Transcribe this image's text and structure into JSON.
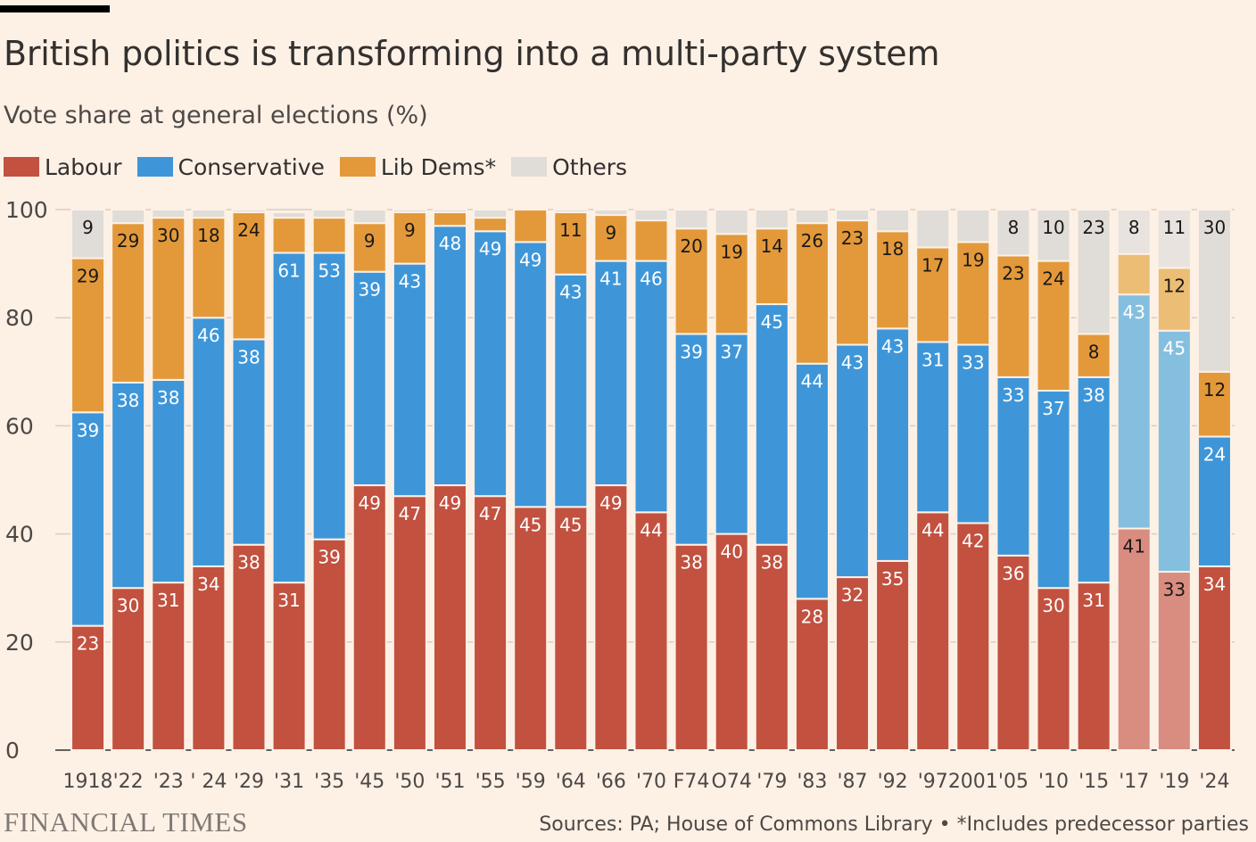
{
  "title": "British politics is transforming into a multi-party system",
  "subtitle": "Vote share at general elections (%)",
  "legend": [
    {
      "label": "Labour",
      "color": "#c2513f"
    },
    {
      "label": "Conservative",
      "color": "#3e96d9"
    },
    {
      "label": "Lib Dems*",
      "color": "#e3993a"
    },
    {
      "label": "Others",
      "color": "#e0dcd7"
    }
  ],
  "footer": {
    "brand": "FINANCIAL TIMES",
    "source": "Sources: PA; House of Commons Library • *Includes predecessor parties"
  },
  "chart_data": {
    "type": "bar",
    "stacked": true,
    "ylim": [
      0,
      100
    ],
    "yticks": [
      0,
      20,
      40,
      60,
      80,
      100
    ],
    "grid": true,
    "categories": [
      "1918",
      "'22",
      "'23",
      "' 24",
      "'29",
      "'31",
      "'35",
      "'45",
      "'50",
      "'51",
      "'55",
      "'59",
      "'64",
      "'66",
      "'70",
      "F74",
      "O74",
      "'79",
      "'83",
      "'87",
      "'92",
      "'97",
      "2001",
      "'05",
      "'10",
      "'15",
      "'17",
      "'19",
      "'24"
    ],
    "series": [
      {
        "name": "Labour",
        "color": "#c2513f",
        "faded_color": "#d98c80",
        "values": [
          23,
          30,
          31,
          34,
          38,
          31,
          39,
          49,
          47,
          49,
          47,
          45,
          45,
          49,
          44,
          38,
          40,
          38,
          28,
          32,
          35,
          44,
          42,
          36,
          30,
          31,
          41,
          33,
          34
        ],
        "labels": [
          "23",
          "30",
          "31",
          "34",
          "38",
          "31",
          "39",
          "49",
          "47",
          "49",
          "47",
          "45",
          "45",
          "49",
          "44",
          "38",
          "40",
          "38",
          "28",
          "32",
          "35",
          "44",
          "42",
          "36",
          "30",
          "31",
          "41",
          "33",
          "34"
        ]
      },
      {
        "name": "Conservative",
        "color": "#3e96d9",
        "faded_color": "#85bfe0",
        "values": [
          39.5,
          38,
          37.5,
          46,
          38,
          61,
          53,
          39.5,
          43,
          48,
          49,
          49,
          43,
          41.5,
          46.5,
          39,
          37,
          44.5,
          43.5,
          43,
          43,
          31.5,
          33,
          33,
          36.5,
          38,
          43.3,
          44.6,
          24
        ],
        "labels": [
          "39",
          "38",
          "38",
          "46",
          "38",
          "61",
          "53",
          "39",
          "43",
          "48",
          "49",
          "49",
          "43",
          "41",
          "46",
          "39",
          "37",
          "45",
          "44",
          "43",
          "43",
          "31",
          "33",
          "33",
          "37",
          "38",
          "43",
          "45",
          "24"
        ]
      },
      {
        "name": "Lib Dems*",
        "color": "#e3993a",
        "faded_color": "#ecbd74",
        "values": [
          28.5,
          29.5,
          30,
          18.5,
          23.5,
          6.5,
          6.5,
          9,
          9.5,
          2.5,
          2.5,
          6,
          11.5,
          8.5,
          7.5,
          19.5,
          18.5,
          14,
          26,
          23,
          18,
          17.5,
          19,
          22.5,
          24,
          8,
          7.5,
          11.6,
          12
        ],
        "labels": [
          "29",
          "29",
          "30",
          "18",
          "24",
          "",
          "",
          "9",
          "9",
          "",
          "",
          "",
          "11",
          "9",
          "",
          "20",
          "19",
          "14",
          "26",
          "23",
          "18",
          "17",
          "19",
          "23",
          "24",
          "8",
          "",
          "12",
          "12"
        ]
      },
      {
        "name": "Others",
        "color": "#e0dcd7",
        "faded_color": "#e8e3de",
        "values": [
          9,
          2.5,
          1.5,
          1.5,
          0.5,
          1,
          1.5,
          2.5,
          0.5,
          0.5,
          1.5,
          0,
          0.5,
          1,
          2,
          3.5,
          4.5,
          3.5,
          2.5,
          2,
          4,
          7,
          6,
          8.5,
          9.5,
          23,
          8.2,
          10.8,
          30
        ],
        "labels": [
          "9",
          "",
          "",
          "",
          "",
          "",
          "",
          "",
          "",
          "",
          "",
          "",
          "",
          "",
          "",
          "",
          "",
          "",
          "",
          "",
          "",
          "",
          "",
          "8",
          "10",
          "23",
          "8",
          "11",
          "30"
        ]
      }
    ],
    "faded_categories": [
      "'17",
      "'19"
    ]
  }
}
